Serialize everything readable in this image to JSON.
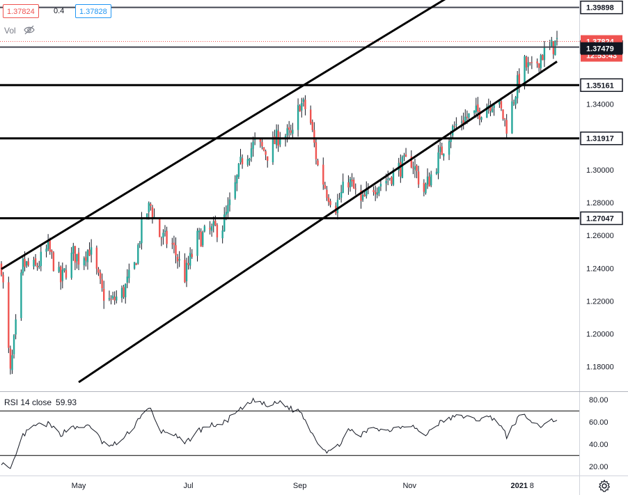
{
  "header": {
    "bid": "1.37824",
    "spread": "0.4",
    "ask": "1.37828",
    "vol_label": "Vol"
  },
  "colors": {
    "up": "#26a69a",
    "down": "#ef5350",
    "rsi_line": "#131722",
    "level": "#000000",
    "price_badge": "#ef5350",
    "axis_text": "#131722"
  },
  "chart_data": [
    {
      "type": "candlestick",
      "title": "",
      "y_axis_ticks": [
        "1.18000",
        "1.20000",
        "1.22000",
        "1.24000",
        "1.26000",
        "1.28000",
        "1.30000",
        "1.32000",
        "1.34000"
      ],
      "y_range": [
        1.165,
        1.4035
      ],
      "x_axis_ticks": [
        "May",
        "Jul",
        "Sep",
        "Nov",
        "2021",
        "8"
      ],
      "x_range": [
        "2020-03-19",
        "2021-01-22"
      ],
      "horizontal_levels": [
        {
          "label": "1.39898",
          "value": 1.39898
        },
        {
          "label": "1.37479",
          "value": 1.37479
        },
        {
          "label": "1.35161",
          "value": 1.35161
        },
        {
          "label": "1.31917",
          "value": 1.31917
        },
        {
          "label": "1.27047",
          "value": 1.27047
        }
      ],
      "current_price": {
        "label": "1.37824",
        "value": 1.37824,
        "countdown": "12:53:43"
      },
      "trend_lines": [
        {
          "name": "upper-channel",
          "points": [
            [
              "2020-03-19",
              1.2395
            ],
            [
              "2021-01-22",
              1.4455
            ]
          ]
        },
        {
          "name": "lower-channel",
          "points": [
            [
              "2020-05-01",
              1.1705
            ],
            [
              "2021-01-22",
              1.366
            ]
          ]
        }
      ],
      "close_path": [
        [
          "2020-03-19",
          1.242
        ],
        [
          "2020-03-24",
          1.175
        ],
        [
          "2020-03-31",
          1.242
        ],
        [
          "2020-04-07",
          1.24
        ],
        [
          "2020-04-14",
          1.252
        ],
        [
          "2020-04-21",
          1.232
        ],
        [
          "2020-04-28",
          1.249
        ],
        [
          "2020-05-01",
          1.246
        ],
        [
          "2020-05-07",
          1.252
        ],
        [
          "2020-05-14",
          1.225
        ],
        [
          "2020-05-19",
          1.219
        ],
        [
          "2020-05-26",
          1.226
        ],
        [
          "2020-06-01",
          1.241
        ],
        [
          "2020-06-06",
          1.271
        ],
        [
          "2020-06-10",
          1.278
        ],
        [
          "2020-06-15",
          1.26
        ],
        [
          "2020-06-22",
          1.254
        ],
        [
          "2020-06-29",
          1.235
        ],
        [
          "2020-07-06",
          1.258
        ],
        [
          "2020-07-13",
          1.262
        ],
        [
          "2020-07-20",
          1.266
        ],
        [
          "2020-07-25",
          1.281
        ],
        [
          "2020-07-31",
          1.307
        ],
        [
          "2020-08-07",
          1.316
        ],
        [
          "2020-08-14",
          1.31
        ],
        [
          "2020-08-21",
          1.322
        ],
        [
          "2020-08-28",
          1.32
        ],
        [
          "2020-09-01",
          1.341
        ],
        [
          "2020-09-06",
          1.335
        ],
        [
          "2020-09-11",
          1.302
        ],
        [
          "2020-09-16",
          1.287
        ],
        [
          "2020-09-21",
          1.278
        ],
        [
          "2020-09-28",
          1.294
        ],
        [
          "2020-10-05",
          1.279
        ],
        [
          "2020-10-12",
          1.29
        ],
        [
          "2020-10-19",
          1.294
        ],
        [
          "2020-10-26",
          1.301
        ],
        [
          "2020-11-02",
          1.306
        ],
        [
          "2020-11-09",
          1.287
        ],
        [
          "2020-11-16",
          1.304
        ],
        [
          "2020-11-23",
          1.322
        ],
        [
          "2020-11-30",
          1.331
        ],
        [
          "2020-12-07",
          1.333
        ],
        [
          "2020-12-14",
          1.34
        ],
        [
          "2020-12-19",
          1.343
        ],
        [
          "2020-12-25",
          1.327
        ],
        [
          "2020-12-31",
          1.352
        ],
        [
          "2021-01-04",
          1.364
        ],
        [
          "2021-01-08",
          1.36
        ],
        [
          "2021-01-13",
          1.37
        ],
        [
          "2021-01-18",
          1.373
        ],
        [
          "2021-01-22",
          1.378
        ]
      ]
    },
    {
      "type": "line",
      "title": "RSI 14 close",
      "value_label": "59.93",
      "y_axis_ticks": [
        "20.00",
        "40.00",
        "60.00",
        "80.00"
      ],
      "y_range": [
        12,
        87
      ],
      "bands": [
        30,
        70
      ],
      "x_range": [
        "2020-03-19",
        "2021-01-22"
      ],
      "series": [
        {
          "values": [
            [
              "2020-03-19",
              24
            ],
            [
              "2020-03-24",
              16
            ],
            [
              "2020-03-31",
              48
            ],
            [
              "2020-04-07",
              57
            ],
            [
              "2020-04-14",
              58
            ],
            [
              "2020-04-21",
              49
            ],
            [
              "2020-04-28",
              57
            ],
            [
              "2020-05-01",
              53
            ],
            [
              "2020-05-07",
              58
            ],
            [
              "2020-05-14",
              42
            ],
            [
              "2020-05-19",
              38
            ],
            [
              "2020-05-26",
              45
            ],
            [
              "2020-06-01",
              57
            ],
            [
              "2020-06-06",
              70
            ],
            [
              "2020-06-10",
              71
            ],
            [
              "2020-06-15",
              52
            ],
            [
              "2020-06-22",
              50
            ],
            [
              "2020-06-29",
              40
            ],
            [
              "2020-07-06",
              52
            ],
            [
              "2020-07-13",
              57
            ],
            [
              "2020-07-20",
              58
            ],
            [
              "2020-07-25",
              65
            ],
            [
              "2020-07-31",
              72
            ],
            [
              "2020-08-07",
              80
            ],
            [
              "2020-08-14",
              74
            ],
            [
              "2020-08-21",
              78
            ],
            [
              "2020-08-28",
              71
            ],
            [
              "2020-09-01",
              70
            ],
            [
              "2020-09-06",
              56
            ],
            [
              "2020-09-11",
              42
            ],
            [
              "2020-09-16",
              34
            ],
            [
              "2020-09-21",
              36
            ],
            [
              "2020-09-28",
              52
            ],
            [
              "2020-10-05",
              48
            ],
            [
              "2020-10-12",
              56
            ],
            [
              "2020-10-19",
              52
            ],
            [
              "2020-10-26",
              56
            ],
            [
              "2020-11-02",
              58
            ],
            [
              "2020-11-09",
              47
            ],
            [
              "2020-11-16",
              58
            ],
            [
              "2020-11-23",
              63
            ],
            [
              "2020-11-30",
              66
            ],
            [
              "2020-12-07",
              62
            ],
            [
              "2020-12-14",
              64
            ],
            [
              "2020-12-19",
              64
            ],
            [
              "2020-12-25",
              47
            ],
            [
              "2020-12-31",
              63
            ],
            [
              "2021-01-04",
              66
            ],
            [
              "2021-01-08",
              60
            ],
            [
              "2021-01-13",
              56
            ],
            [
              "2021-01-18",
              63
            ],
            [
              "2021-01-22",
              60
            ]
          ]
        }
      ]
    }
  ]
}
